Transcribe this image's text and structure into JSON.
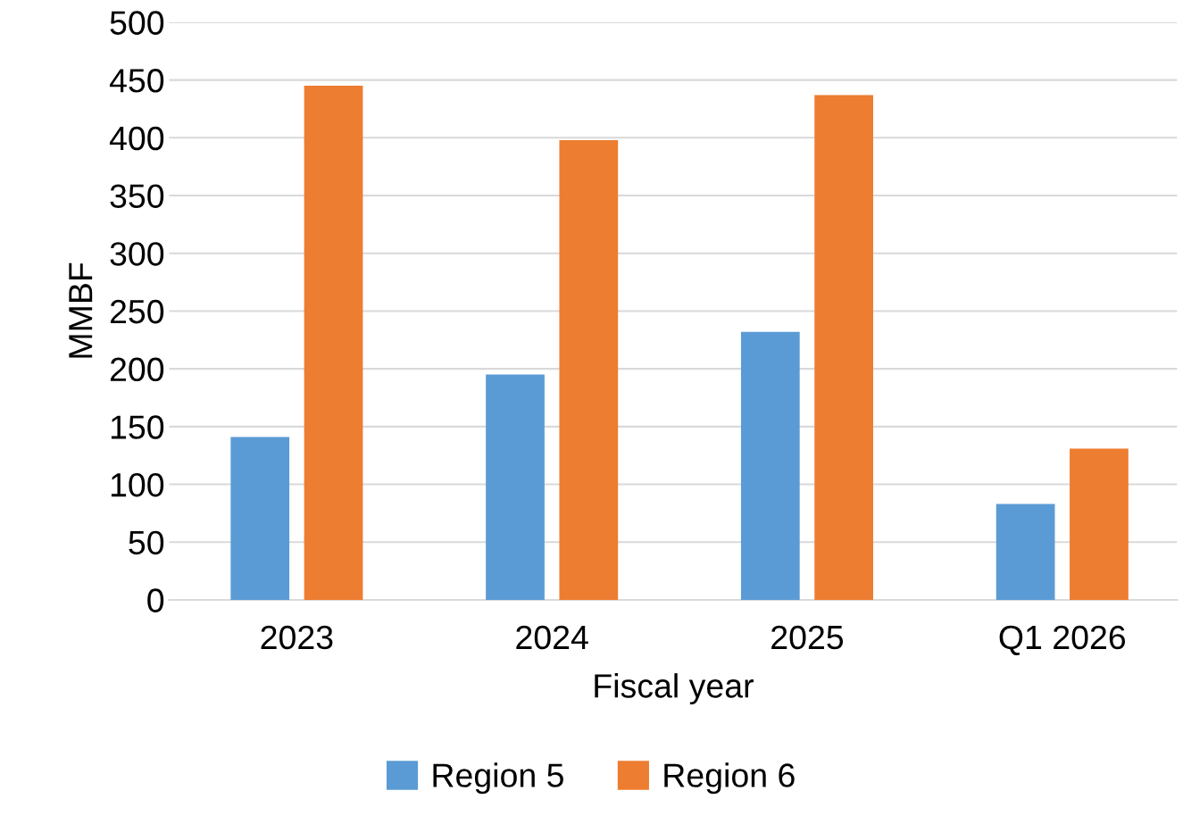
{
  "chart_data": {
    "type": "bar",
    "xlabel": "Fiscal year",
    "ylabel": "MMBF",
    "categories": [
      "2023",
      "2024",
      "2025",
      "Q1 2026"
    ],
    "series": [
      {
        "name": "Region 5",
        "color": "#5b9bd5",
        "values": [
          141,
          195,
          232,
          83
        ]
      },
      {
        "name": "Region 6",
        "color": "#ed7d31",
        "values": [
          445,
          398,
          437,
          131
        ]
      }
    ],
    "ylim": [
      0,
      500
    ],
    "yticks": [
      0,
      50,
      100,
      150,
      200,
      250,
      300,
      350,
      400,
      450,
      500
    ],
    "grid": "y",
    "legend": "bottom"
  }
}
